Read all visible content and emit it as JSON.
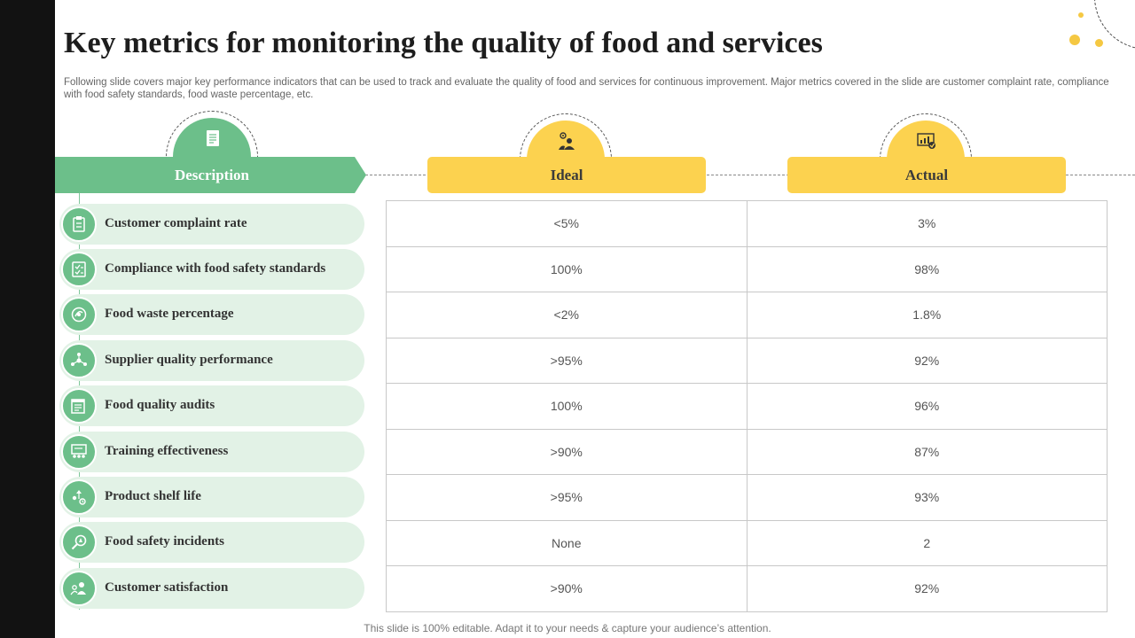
{
  "title": "Key metrics for monitoring the quality of food and services",
  "subtitle": "Following slide covers major key performance indicators that can be used to track and evaluate the quality of food and services for continuous improvement. Major metrics covered in the slide are customer complaint rate, compliance with food safety standards, food waste percentage, etc.",
  "headers": {
    "description": "Description",
    "ideal": "Ideal",
    "actual": "Actual"
  },
  "colors": {
    "green": "#6cbf8a",
    "light_green": "#e2f2e6",
    "yellow": "#fcd24f"
  },
  "rows": [
    {
      "metric": "Customer complaint rate",
      "icon": "clipboard-icon",
      "ideal": "<5%",
      "actual": "3%"
    },
    {
      "metric": "Compliance with food safety standards",
      "icon": "checklist-icon",
      "ideal": "100%",
      "actual": "98%"
    },
    {
      "metric": "Food waste percentage",
      "icon": "recycle-food-icon",
      "ideal": "<2%",
      "actual": "1.8%"
    },
    {
      "metric": "Supplier quality performance",
      "icon": "network-icon",
      "ideal": ">95%",
      "actual": "92%"
    },
    {
      "metric": "Food quality audits",
      "icon": "audit-report-icon",
      "ideal": "100%",
      "actual": "96%"
    },
    {
      "metric": "Training effectiveness",
      "icon": "training-board-icon",
      "ideal": ">90%",
      "actual": "87%"
    },
    {
      "metric": "Product shelf life",
      "icon": "shelf-life-icon",
      "ideal": ">95%",
      "actual": "93%"
    },
    {
      "metric": "Food safety incidents",
      "icon": "magnifier-alert-icon",
      "ideal": "None",
      "actual": "2"
    },
    {
      "metric": "Customer satisfaction",
      "icon": "customers-icon",
      "ideal": ">90%",
      "actual": "92%"
    }
  ],
  "footer": "This slide is 100% editable. Adapt it to your needs & capture your audience’s attention."
}
